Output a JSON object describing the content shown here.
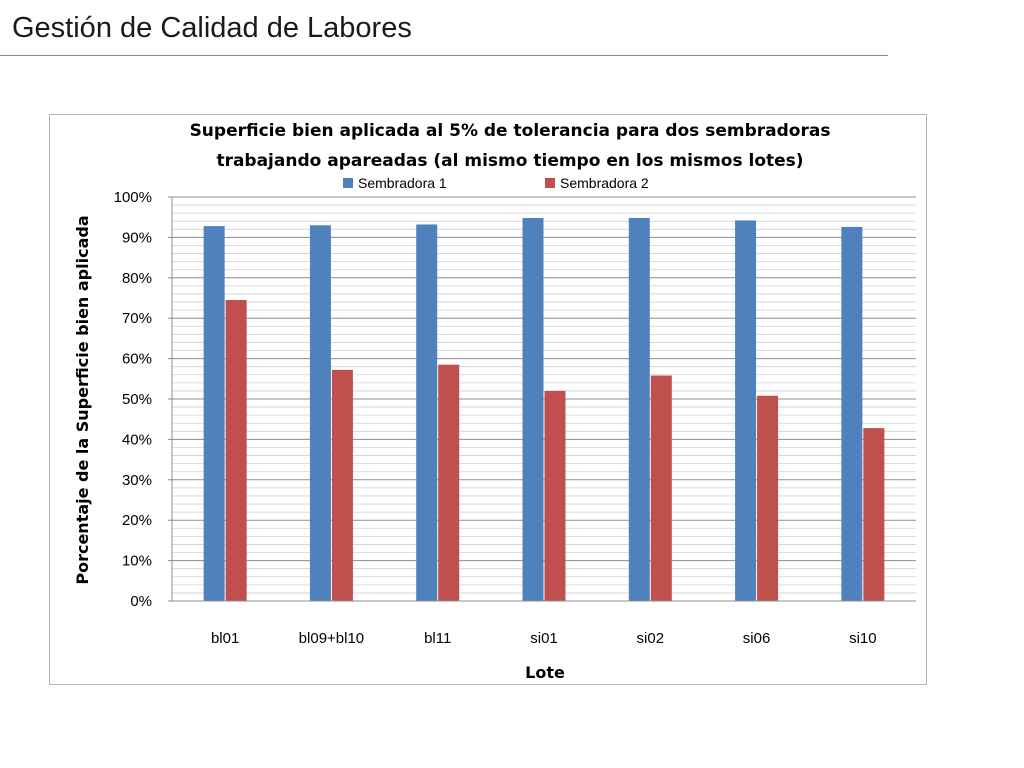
{
  "slide": {
    "title": "Gestión de Calidad de Labores"
  },
  "colors": {
    "series1": "#4f81bd",
    "series2": "#c0504d",
    "grid": "#a6a6a6",
    "frame": "#b3b3b3",
    "rule": "#7a9a6a"
  },
  "chart_data": {
    "type": "bar",
    "title_lines": [
      "Superficie bien aplicada al 5% de tolerancia para dos sembradoras",
      "trabajando apareadas (al mismo tiempo en los mismos lotes)"
    ],
    "xlabel": "Lote",
    "ylabel": "Porcentaje de la Superficie bien aplicada",
    "categories": [
      "bl01",
      "bl09+bl10",
      "bl11",
      "si01",
      "si02",
      "si06",
      "si10"
    ],
    "series": [
      {
        "name": "Sembradora 1",
        "values": [
          92.8,
          93.0,
          93.2,
          94.8,
          94.8,
          94.2,
          92.6
        ]
      },
      {
        "name": "Sembradora 2",
        "values": [
          74.5,
          57.2,
          58.5,
          52.0,
          55.8,
          50.8,
          42.8
        ]
      }
    ],
    "ylim": [
      0,
      100
    ],
    "yticks": [
      "0%",
      "10%",
      "20%",
      "30%",
      "40%",
      "50%",
      "60%",
      "70%",
      "80%",
      "90%",
      "100%"
    ],
    "grid": true,
    "legend_position": "top"
  }
}
